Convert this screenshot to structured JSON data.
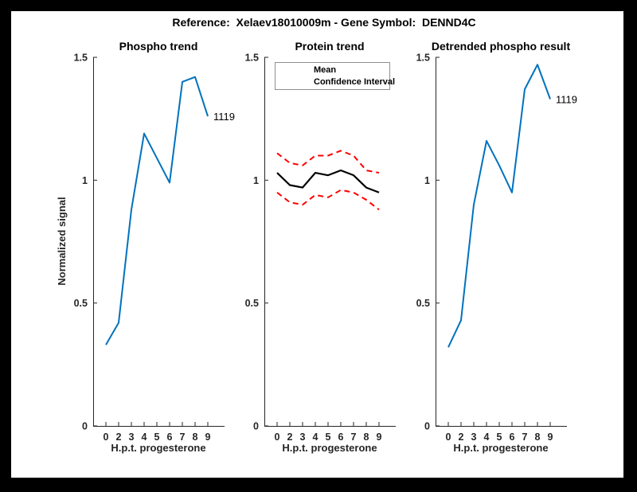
{
  "figure": {
    "suptitle": "Reference:  Xelaev18010009m - Gene Symbol:  DENND4C",
    "background_color": "#ffffff",
    "border_color": "#000000",
    "axis_color": "#262626"
  },
  "chart_data": [
    {
      "type": "line",
      "title": "Phospho trend",
      "xlabel": "H.p.t. progesterone",
      "ylabel": "Normalized signal",
      "categories": [
        "0",
        "2",
        "3",
        "4",
        "5",
        "6",
        "7",
        "8",
        "9"
      ],
      "yticks": [
        "0",
        "0.5",
        "1",
        "1.5"
      ],
      "ytick_values": [
        0,
        0.5,
        1,
        1.5
      ],
      "ylim": [
        0,
        1.5
      ],
      "grid": false,
      "series": [
        {
          "name": "1119",
          "color": "#0072BD",
          "style": "solid",
          "width": 2,
          "end_label": "1119",
          "values": [
            0.33,
            0.42,
            0.88,
            1.19,
            1.09,
            0.99,
            1.4,
            1.42,
            1.26
          ]
        }
      ]
    },
    {
      "type": "line",
      "title": "Protein trend",
      "xlabel": "H.p.t. progesterone",
      "ylabel": "",
      "categories": [
        "0",
        "2",
        "3",
        "4",
        "5",
        "6",
        "7",
        "8",
        "9"
      ],
      "yticks": [
        "0",
        "0.5",
        "1",
        "1.5"
      ],
      "ytick_values": [
        0,
        0.5,
        1,
        1.5
      ],
      "ylim": [
        0,
        1.5
      ],
      "grid": false,
      "legend": {
        "position": "northwest",
        "entries": [
          "Mean",
          "Confidence Interval"
        ],
        "colors": [
          "#000000",
          "#ff0000"
        ]
      },
      "series": [
        {
          "name": "Confidence Interval upper",
          "color": "#ff0000",
          "style": "dashed",
          "width": 2,
          "values": [
            1.11,
            1.07,
            1.06,
            1.1,
            1.1,
            1.12,
            1.1,
            1.04,
            1.03
          ]
        },
        {
          "name": "Confidence Interval lower",
          "color": "#ff0000",
          "style": "dashed",
          "width": 2,
          "values": [
            0.95,
            0.91,
            0.9,
            0.94,
            0.93,
            0.96,
            0.95,
            0.92,
            0.88
          ]
        },
        {
          "name": "Mean",
          "color": "#000000",
          "style": "solid",
          "width": 2.2,
          "values": [
            1.03,
            0.98,
            0.97,
            1.03,
            1.02,
            1.04,
            1.02,
            0.97,
            0.95
          ]
        }
      ]
    },
    {
      "type": "line",
      "title": "Detrended phospho result",
      "xlabel": "H.p.t. progesterone",
      "ylabel": "",
      "categories": [
        "0",
        "2",
        "3",
        "4",
        "5",
        "6",
        "7",
        "8",
        "9"
      ],
      "yticks": [
        "0",
        "0.5",
        "1",
        "1.5"
      ],
      "ytick_values": [
        0,
        0.5,
        1,
        1.5
      ],
      "ylim": [
        0,
        1.5
      ],
      "grid": false,
      "series": [
        {
          "name": "1119",
          "color": "#0072BD",
          "style": "solid",
          "width": 2,
          "end_label": "1119",
          "values": [
            0.32,
            0.43,
            0.9,
            1.16,
            1.06,
            0.95,
            1.37,
            1.47,
            1.33
          ]
        }
      ]
    }
  ]
}
